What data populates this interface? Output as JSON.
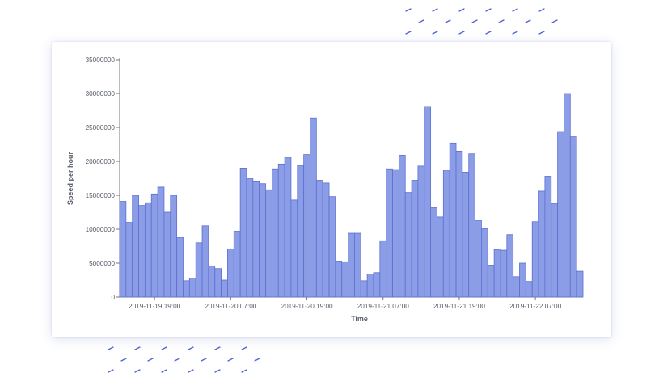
{
  "chart_data": {
    "type": "bar",
    "title": "",
    "xlabel": "Time",
    "ylabel": "Speed per hour",
    "ylim": [
      0,
      35000000
    ],
    "y_ticks": [
      0,
      5000000,
      10000000,
      15000000,
      20000000,
      25000000,
      30000000,
      35000000
    ],
    "x_tick_labels": [
      {
        "label": "2019-11-19 19:00",
        "index": 5.5
      },
      {
        "label": "2019-11-20 07:00",
        "index": 17.5
      },
      {
        "label": "2019-11-20 19:00",
        "index": 29.5
      },
      {
        "label": "2019-11-21 07:00",
        "index": 41.5
      },
      {
        "label": "2019-11-21 19:00",
        "index": 53.5
      },
      {
        "label": "2019-11-22 07:00",
        "index": 65.5
      }
    ],
    "grid": false,
    "values": [
      14100000,
      11000000,
      15000000,
      13500000,
      13900000,
      15200000,
      16200000,
      12500000,
      15000000,
      8800000,
      2400000,
      2800000,
      8000000,
      10500000,
      4600000,
      4200000,
      2500000,
      7100000,
      9700000,
      19000000,
      17500000,
      17100000,
      16700000,
      15800000,
      18900000,
      19600000,
      20600000,
      14300000,
      19400000,
      21000000,
      26400000,
      17200000,
      16800000,
      14800000,
      5300000,
      5200000,
      9400000,
      9400000,
      2400000,
      3400000,
      3600000,
      8300000,
      18900000,
      18800000,
      20900000,
      15400000,
      17200000,
      19300000,
      28100000,
      13200000,
      11800000,
      18700000,
      22700000,
      21500000,
      18400000,
      21100000,
      11300000,
      10100000,
      4700000,
      7000000,
      6900000,
      9200000,
      3000000,
      5000000,
      2300000,
      11100000,
      15600000,
      17800000,
      13800000,
      24400000,
      30000000,
      23700000,
      3800000
    ],
    "colors": {
      "bar_fill": "#8b9de6",
      "bar_stroke": "#5d6fcf",
      "decor": "#4f63d8"
    }
  }
}
